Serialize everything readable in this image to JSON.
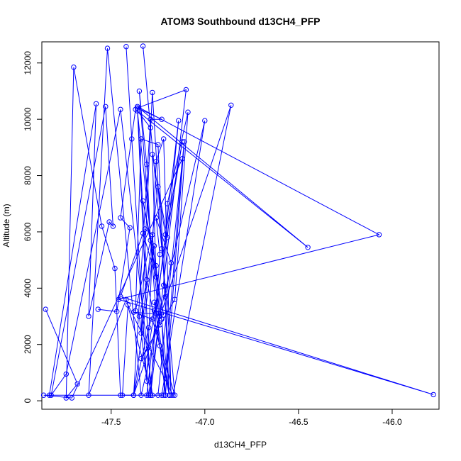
{
  "chart_data": {
    "type": "line",
    "title": "ATOM3 Southbound d13CH4_PFP",
    "xlabel": "d13CH4_PFP",
    "ylabel": "Altitude (m)",
    "xlim": [
      -47.87,
      -45.75
    ],
    "ylim": [
      -300,
      12750
    ],
    "x_ticks": [
      -47.5,
      -47.0,
      -46.5,
      -46.0
    ],
    "y_ticks": [
      0,
      2000,
      4000,
      6000,
      8000,
      10000,
      12000
    ],
    "x_tick_labels": [
      "-47.5",
      "-47.0",
      "-46.5",
      "-46.0"
    ],
    "y_tick_labels": [
      "0",
      "2000",
      "4000",
      "6000",
      "8000",
      "10000",
      "12000"
    ],
    "grid": false,
    "marker": "open-circle",
    "color": "#0000ff",
    "series": [
      {
        "x": [
          -47.85,
          -47.68,
          -47.74,
          -47.7,
          -47.55,
          -47.48,
          -47.45,
          -47.38,
          -47.3,
          -47.27,
          -47.23,
          -47.21,
          -47.26,
          -47.35,
          -47.31,
          -47.29,
          -47.37,
          -47.34,
          -47.25,
          -47.19,
          -47.26,
          -47.33,
          -47.22,
          -47.38,
          -47.28,
          -47.24,
          -47.16,
          -47.23,
          -47.33,
          -47.29,
          -47.36,
          -47.24,
          -47.27,
          -47.19,
          -47.31,
          -47.36,
          -47.23,
          -47.29,
          -47.38,
          -47.27,
          -47.35,
          -47.3,
          -47.24,
          -47.28,
          -47.32
        ],
        "y": [
          3250,
          600,
          100,
          11850,
          6200,
          4700,
          200,
          200,
          2600,
          3200,
          2900,
          200,
          3100,
          11000,
          8400,
          5700,
          3200,
          9300,
          9100,
          200,
          4800,
          7100,
          3050,
          3150,
          2900,
          1950,
          200,
          5400,
          12600,
          9700,
          10300,
          2700,
          3500,
          200,
          4300,
          10400,
          10000,
          10000,
          200,
          5500,
          3000,
          200,
          3000,
          5900,
          6100
        ]
      },
      {
        "x": [
          -47.42,
          -47.39,
          -47.31,
          -47.26,
          -47.22,
          -47.18,
          -47.28,
          -47.34,
          -47.25,
          -47.2,
          -47.14,
          -47.31,
          -47.29,
          -47.36,
          -47.1,
          -47.29,
          -47.24,
          -47.26,
          -47.18,
          -47.21
        ],
        "y": [
          12580,
          9300,
          700,
          8500,
          9300,
          200,
          10950,
          2400,
          7600,
          5800,
          9950,
          200,
          200,
          10400,
          11050,
          200,
          5200,
          6500,
          4900,
          3700
        ]
      },
      {
        "x": [
          -47.57,
          -47.47,
          -47.4,
          -47.45,
          -47.37,
          -46.45,
          -47.36,
          -46.07,
          -47.46,
          -45.78,
          -47.45,
          -47.33,
          -47.26,
          -47.28,
          -47.21,
          -47.12,
          -47.3,
          -47.34,
          -47.16,
          -47.09,
          -47.2,
          -47.22
        ],
        "y": [
          3250,
          3170,
          6150,
          6500,
          10350,
          5450,
          10450,
          5900,
          3600,
          220,
          3700,
          5950,
          4400,
          8750,
          5900,
          9200,
          1900,
          1500,
          3600,
          10250,
          7000,
          4100
        ]
      },
      {
        "x": [
          -47.83,
          -47.58,
          -47.62,
          -47.51,
          -47.49,
          -47.53,
          -47.82,
          -47.74,
          -47.45,
          -47.28,
          -47.42,
          -47.62,
          -47.52,
          -47.34,
          -47.0,
          -47.23,
          -47.86,
          -47.71,
          -47.12,
          -47.22,
          -47.38,
          -46.86,
          -47.17,
          -47.41,
          -47.44,
          -47.25,
          -47.11,
          -47.21
        ],
        "y": [
          200,
          10550,
          3000,
          6350,
          6200,
          10450,
          200,
          950,
          10350,
          200,
          3600,
          200,
          12520,
          200,
          9950,
          200,
          200,
          100,
          8600,
          200,
          200,
          10500,
          200,
          3400,
          200,
          200,
          9200,
          200
        ]
      }
    ]
  }
}
